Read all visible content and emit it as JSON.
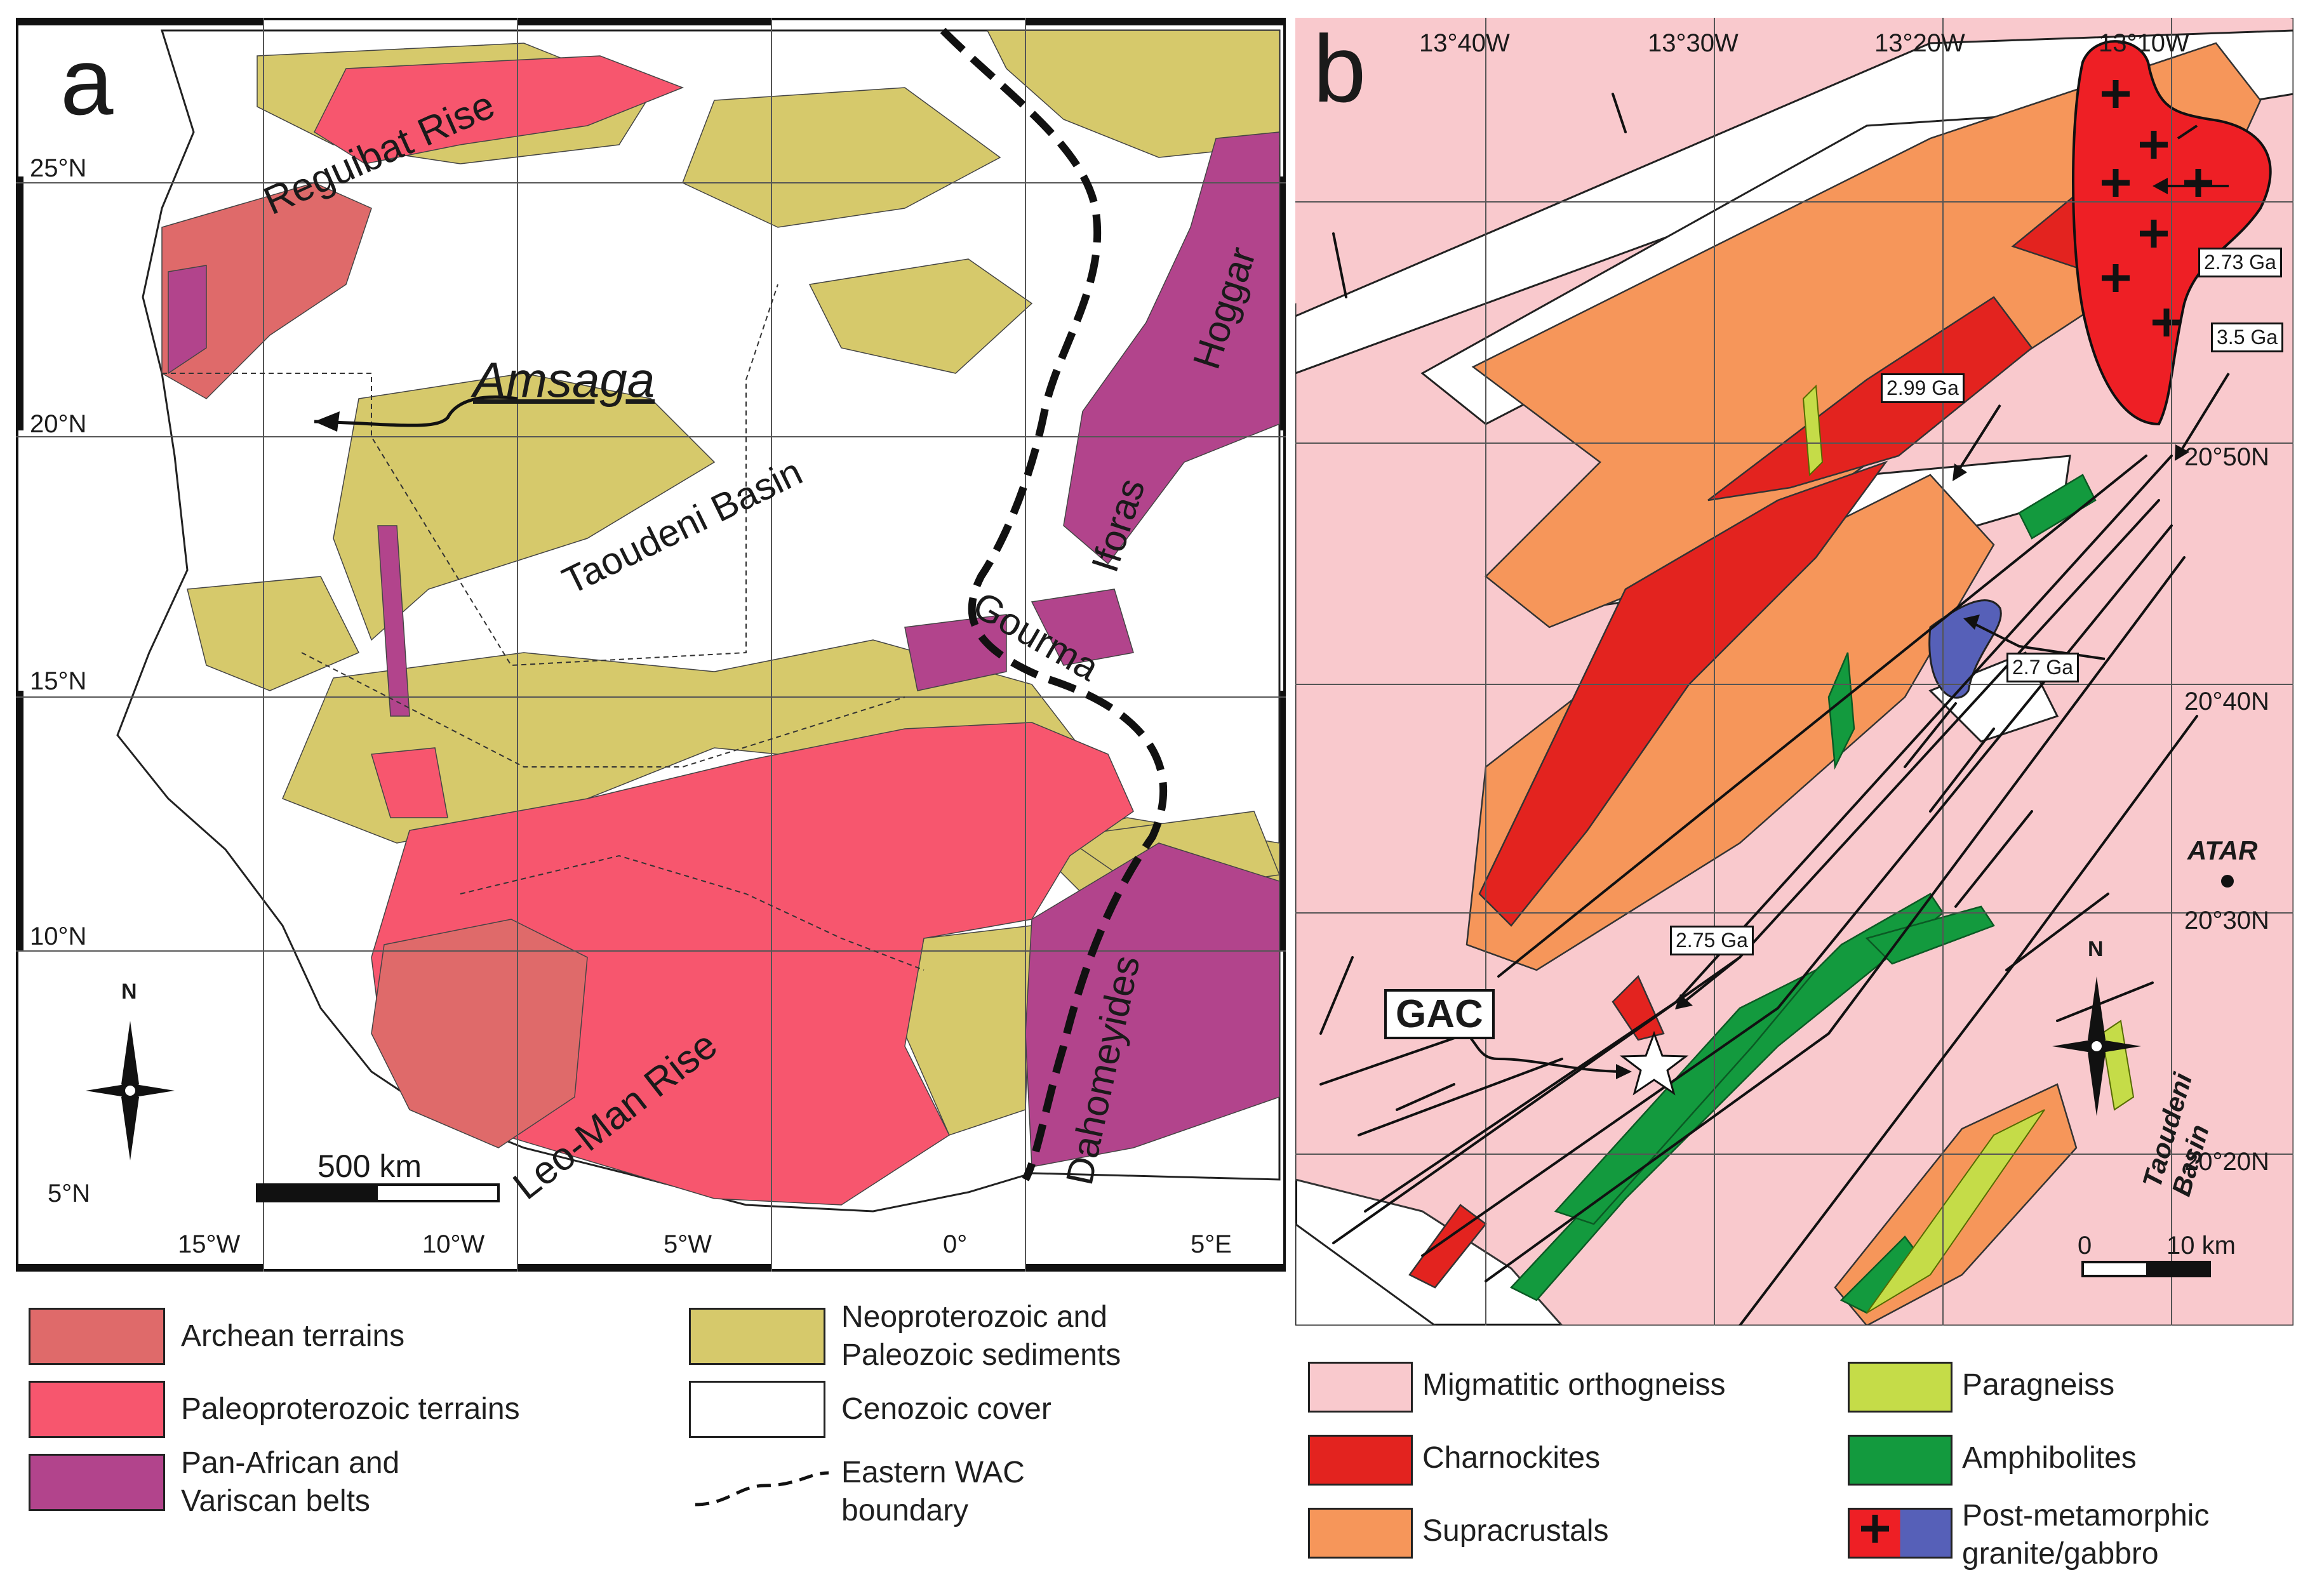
{
  "panel_a": {
    "letter": "a",
    "lat_labels": [
      "25°N",
      "20°N",
      "15°N",
      "10°N",
      "5°N"
    ],
    "lon_labels": [
      "15°W",
      "10°W",
      "5°W",
      "0°",
      "5°E"
    ],
    "place_labels": {
      "reguibat": "Reguibat Rise",
      "amsaga": "Amsaga",
      "taoudeni": "Taoudeni Basin",
      "hoggar": "Hoggar",
      "iforas": "Iforas",
      "gourma": "Gourma",
      "leoman": "Leo-Man Rise",
      "dahomeyides": "Dahomeyides"
    },
    "north": "N",
    "scale_label": "500 km"
  },
  "panel_b": {
    "letter": "b",
    "lon_labels": [
      "13°40W",
      "13°30W",
      "13°20W",
      "13°10W"
    ],
    "lat_labels": [
      "20°50N",
      "20°40N",
      "20°30N",
      "20°20N"
    ],
    "ages": [
      "2.73 Ga",
      "3.5 Ga",
      "2.99 Ga",
      "2.7 Ga",
      "2.75 Ga"
    ],
    "gac": "GAC",
    "atar": "ATAR",
    "taoudeni": "Taoudeni Basin",
    "north": "N",
    "scale_zero": "0",
    "scale_label": "10 km"
  },
  "legend_a": [
    {
      "label": "Archean terrains",
      "color": "#df6a6a"
    },
    {
      "label": "Paleoproterozoic terrains",
      "color": "#f7566e"
    },
    {
      "label": "Pan-African and\nVariscan belts",
      "color": "#b2448c"
    },
    {
      "label": "Neoproterozoic and\nPaleozoic sediments",
      "color": "#d6c96b"
    },
    {
      "label": "Cenozoic cover",
      "color": "#ffffff"
    },
    {
      "label": "Eastern WAC\nboundary",
      "color": "#111111"
    }
  ],
  "legend_b": [
    {
      "label": "Migmatitic orthogneiss",
      "color": "#f9c9cd"
    },
    {
      "label": "Charnockites",
      "color": "#e3231f"
    },
    {
      "label": "Supracrustals",
      "color": "#f6965a"
    },
    {
      "label": "Paragneiss",
      "color": "#c5dc48"
    },
    {
      "label": "Amphibolites",
      "color": "#139a3e"
    },
    {
      "label": "Post-metamorphic\ngranite/gabbro",
      "color": "#ee1f25"
    }
  ],
  "gabbro_color": "#5660b8"
}
